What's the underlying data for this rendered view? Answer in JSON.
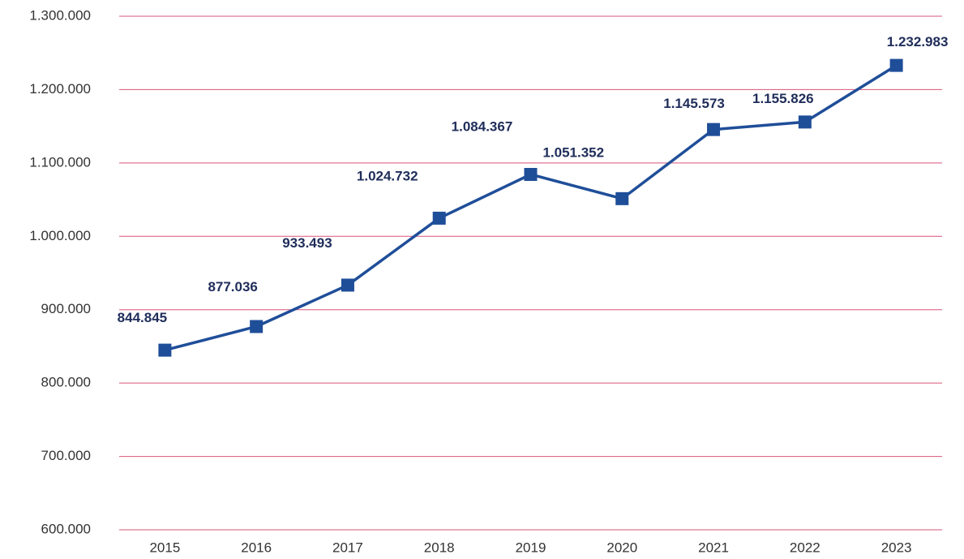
{
  "chart_data": {
    "type": "line",
    "categories": [
      "2015",
      "2016",
      "2017",
      "2018",
      "2019",
      "2020",
      "2021",
      "2022",
      "2023"
    ],
    "series": [
      {
        "name": null,
        "color": "#1f4e99",
        "values": [
          844845,
          877036,
          933493,
          1024732,
          1084367,
          1051352,
          1145573,
          1155826,
          1232983
        ],
        "value_labels": [
          "844.845",
          "877.036",
          "933.493",
          "1.024.732",
          "1.084.367",
          "1.051.352",
          "1.145.573",
          "1.155.826",
          "1.232.983"
        ]
      }
    ],
    "ylim": [
      600000,
      1300000
    ],
    "yticks": [
      {
        "value": 600000,
        "label": "600.000"
      },
      {
        "value": 700000,
        "label": "700.000"
      },
      {
        "value": 800000,
        "label": "800.000"
      },
      {
        "value": 900000,
        "label": "900.000"
      },
      {
        "value": 1000000,
        "label": "1.000.000"
      },
      {
        "value": 1100000,
        "label": "1.100.000"
      },
      {
        "value": 1200000,
        "label": "1.200.000"
      },
      {
        "value": 1300000,
        "label": "1.300.000"
      }
    ],
    "grid": true,
    "grid_color": "#d9547a"
  }
}
